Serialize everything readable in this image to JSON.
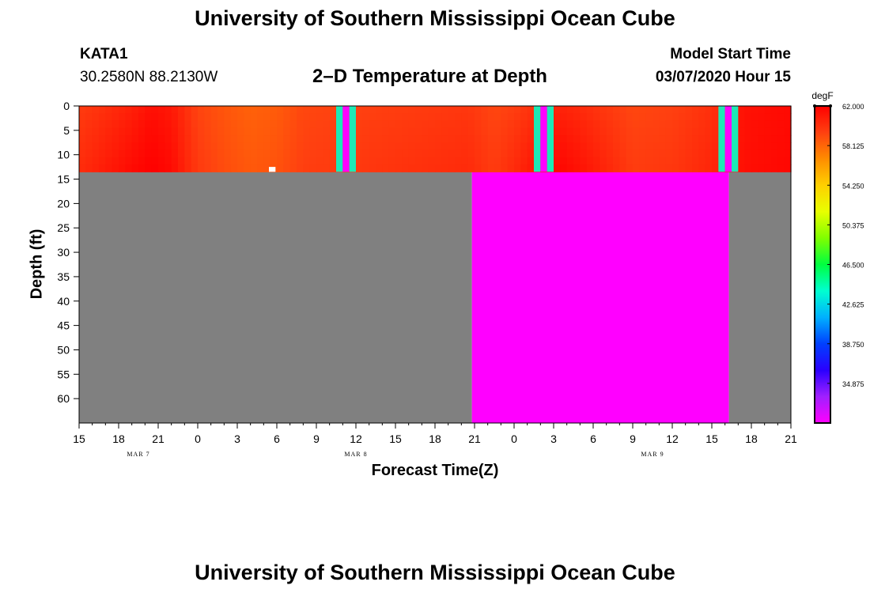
{
  "header": {
    "title": "University of Southern Mississippi Ocean Cube",
    "station": "KATA1",
    "coords": "30.2580N 88.2130W",
    "subtitle": "2–D Temperature at Depth",
    "model_label": "Model Start Time",
    "model_time": "03/07/2020 Hour 15"
  },
  "footer": {
    "title": "University of Southern Mississippi Ocean Cube"
  },
  "chart_data": {
    "type": "heatmap",
    "xlabel": "Forecast Time(Z)",
    "ylabel": "Depth (ft)",
    "x_range_hours": [
      0,
      54
    ],
    "x_tick_labels": [
      "15",
      "18",
      "21",
      "0",
      "3",
      "6",
      "9",
      "12",
      "15",
      "18",
      "21",
      "0",
      "3",
      "6",
      "9",
      "12",
      "15",
      "18",
      "21"
    ],
    "date_labels": [
      {
        "label": "MAR 7",
        "hour": 4.5
      },
      {
        "label": "MAR 8",
        "hour": 21
      },
      {
        "label": "MAR 9",
        "hour": 43.5
      }
    ],
    "y_range_ft": [
      0,
      65
    ],
    "y_ticks": [
      0,
      5,
      10,
      15,
      20,
      25,
      30,
      35,
      40,
      45,
      50,
      55,
      60
    ],
    "data_depth_ft": [
      0,
      13.5
    ],
    "temperature_profile": {
      "hours": [
        0,
        2,
        4,
        5.5,
        7,
        8,
        9,
        11,
        13,
        15,
        17,
        29.5,
        31.5,
        33,
        35,
        36.5,
        38,
        40,
        42,
        45,
        48,
        50.5,
        54
      ],
      "surface_degF": [
        59.6,
        60.1,
        60.7,
        61.4,
        61.0,
        60.2,
        59.3,
        58.7,
        58.3,
        58.5,
        59.2,
        59.8,
        59.2,
        59.5,
        60.2,
        60.6,
        60.3,
        59.7,
        59.2,
        59.4,
        60.1,
        61.3,
        61.6
      ],
      "bottom_degF": [
        60.2,
        60.9,
        61.6,
        62.0,
        61.6,
        60.6,
        59.7,
        59.0,
        58.6,
        58.8,
        59.5,
        60.3,
        59.6,
        60.3,
        61.4,
        61.8,
        61.3,
        60.5,
        59.6,
        59.8,
        60.5,
        61.4,
        61.7
      ]
    },
    "missing_intervals": [
      {
        "x": [
          19.5,
          20.0
        ],
        "y": [
          0,
          13.5
        ],
        "fill": "#1de9b6"
      },
      {
        "x": [
          20.0,
          20.5
        ],
        "y": [
          0,
          13.5
        ],
        "fill": "#ff00ff"
      },
      {
        "x": [
          20.5,
          21.0
        ],
        "y": [
          0,
          13.5
        ],
        "fill": "#1de9b6"
      },
      {
        "x": [
          34.5,
          35.0
        ],
        "y": [
          0,
          13.5
        ],
        "fill": "#1de9b6"
      },
      {
        "x": [
          35.0,
          35.5
        ],
        "y": [
          0,
          13.5
        ],
        "fill": "#ff00ff"
      },
      {
        "x": [
          35.5,
          36.0
        ],
        "y": [
          0,
          13.5
        ],
        "fill": "#1de9b6"
      },
      {
        "x": [
          48.5,
          49.0
        ],
        "y": [
          0,
          13.5
        ],
        "fill": "#1de9b6"
      },
      {
        "x": [
          49.0,
          49.5
        ],
        "y": [
          0,
          13.5
        ],
        "fill": "#ff00ff"
      },
      {
        "x": [
          49.5,
          50.0
        ],
        "y": [
          0,
          13.5
        ],
        "fill": "#1de9b6"
      },
      {
        "x": [
          14.4,
          14.9
        ],
        "y": [
          12.5,
          13.5
        ],
        "fill": "#ffffff"
      }
    ],
    "below_data_regions": [
      {
        "x": [
          0,
          29.8
        ],
        "fill": "#808080"
      },
      {
        "x": [
          29.8,
          49.3
        ],
        "fill": "#ff00ff"
      },
      {
        "x": [
          49.3,
          54
        ],
        "fill": "#808080"
      }
    ],
    "colorbar": {
      "unit": "degF",
      "min": 31.0,
      "max": 62.0,
      "tick_labels": [
        "62.000",
        "58.125",
        "54.250",
        "50.375",
        "46.500",
        "42.625",
        "38.750",
        "34.875"
      ],
      "colors": [
        "#ff00ff",
        "#a020ff",
        "#2a00ff",
        "#0040ff",
        "#00b0ff",
        "#00ffd0",
        "#00ff40",
        "#80ff00",
        "#e8ff00",
        "#ffd000",
        "#ff8c00",
        "#ff4010",
        "#ff0000"
      ]
    }
  }
}
